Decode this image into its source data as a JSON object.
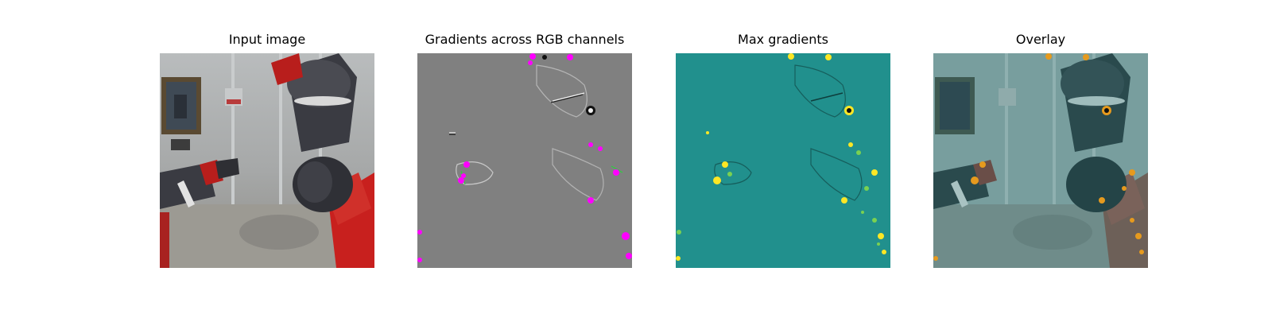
{
  "figure": {
    "panels": [
      {
        "title": "Input image"
      },
      {
        "title": "Gradients across RGB channels"
      },
      {
        "title": "Max gradients"
      },
      {
        "title": "Overlay"
      }
    ],
    "colors": {
      "gradient_gray": "#808080",
      "gradient_magenta": "#ff00ff",
      "max_gradient_teal": "#21908d",
      "max_gradient_yellow": "#fde725",
      "overlay_orange": "#e69a1e",
      "robot_red": "#c8201e",
      "robot_dark": "#3a3b42"
    }
  }
}
